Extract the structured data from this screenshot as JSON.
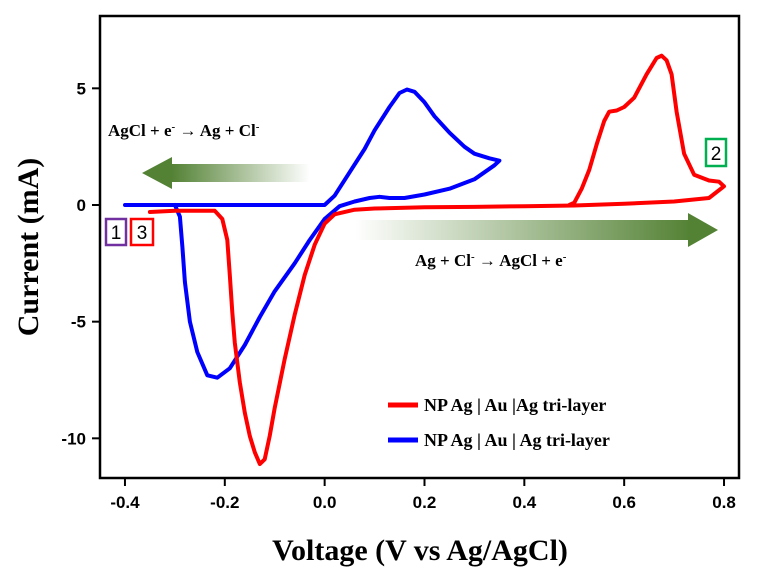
{
  "chart_data": {
    "type": "line",
    "xlabel": "Voltage (V vs Ag/AgCl)",
    "ylabel": "Current (mA)",
    "xlim": [
      -0.45,
      0.83
    ],
    "ylim": [
      -11.7,
      8.1
    ],
    "xticks": [
      -0.4,
      -0.2,
      0.0,
      0.2,
      0.4,
      0.6,
      0.8
    ],
    "xtick_labels": [
      "-0.4",
      "-0.2",
      "0.0",
      "0.2",
      "0.4",
      "0.6",
      "0.8"
    ],
    "yticks": [
      -10,
      -5,
      0,
      5
    ],
    "ytick_labels": [
      "-10",
      "-5",
      "0",
      "5"
    ],
    "grid": false,
    "legend_position": "bottom-right",
    "series": [
      {
        "name": "NP Ag | Au |Ag tri-layer",
        "color": "#ff0000",
        "points": [
          [
            -0.35,
            -0.3
          ],
          [
            -0.3,
            -0.25
          ],
          [
            -0.25,
            -0.25
          ],
          [
            -0.22,
            -0.25
          ],
          [
            -0.205,
            -0.6
          ],
          [
            -0.195,
            -1.5
          ],
          [
            -0.19,
            -3.0
          ],
          [
            -0.185,
            -4.6
          ],
          [
            -0.18,
            -5.9
          ],
          [
            -0.17,
            -7.6
          ],
          [
            -0.16,
            -8.9
          ],
          [
            -0.15,
            -9.9
          ],
          [
            -0.14,
            -10.6
          ],
          [
            -0.13,
            -11.1
          ],
          [
            -0.12,
            -10.9
          ],
          [
            -0.11,
            -9.9
          ],
          [
            -0.1,
            -8.7
          ],
          [
            -0.08,
            -6.6
          ],
          [
            -0.06,
            -4.7
          ],
          [
            -0.04,
            -3.0
          ],
          [
            -0.02,
            -1.7
          ],
          [
            0.0,
            -0.8
          ],
          [
            0.02,
            -0.4
          ],
          [
            0.06,
            -0.2
          ],
          [
            0.1,
            -0.15
          ],
          [
            0.2,
            -0.1
          ],
          [
            0.3,
            -0.08
          ],
          [
            0.4,
            -0.05
          ],
          [
            0.5,
            -0.02
          ],
          [
            0.6,
            0.05
          ],
          [
            0.7,
            0.15
          ],
          [
            0.77,
            0.3
          ],
          [
            0.8,
            0.8
          ],
          [
            0.79,
            1.0
          ],
          [
            0.77,
            1.05
          ],
          [
            0.74,
            1.3
          ],
          [
            0.72,
            2.2
          ],
          [
            0.705,
            4.0
          ],
          [
            0.695,
            5.6
          ],
          [
            0.685,
            6.2
          ],
          [
            0.675,
            6.4
          ],
          [
            0.665,
            6.3
          ],
          [
            0.645,
            5.6
          ],
          [
            0.62,
            4.6
          ],
          [
            0.6,
            4.2
          ],
          [
            0.585,
            4.05
          ],
          [
            0.57,
            4.0
          ],
          [
            0.56,
            3.6
          ],
          [
            0.545,
            2.6
          ],
          [
            0.53,
            1.5
          ],
          [
            0.515,
            0.7
          ],
          [
            0.5,
            0.1
          ],
          [
            0.49,
            0.0
          ]
        ]
      },
      {
        "name": "NP Ag | Au | Ag tri-layer",
        "color": "#0000ff",
        "points": [
          [
            -0.4,
            0.0
          ],
          [
            -0.3,
            0.0
          ],
          [
            -0.2,
            0.0
          ],
          [
            -0.1,
            0.0
          ],
          [
            0.0,
            0.0
          ],
          [
            0.02,
            0.4
          ],
          [
            0.05,
            1.4
          ],
          [
            0.08,
            2.4
          ],
          [
            0.1,
            3.2
          ],
          [
            0.13,
            4.2
          ],
          [
            0.15,
            4.8
          ],
          [
            0.165,
            4.95
          ],
          [
            0.18,
            4.85
          ],
          [
            0.2,
            4.4
          ],
          [
            0.22,
            3.8
          ],
          [
            0.25,
            3.1
          ],
          [
            0.28,
            2.5
          ],
          [
            0.3,
            2.2
          ],
          [
            0.33,
            2.0
          ],
          [
            0.35,
            1.9
          ],
          [
            0.34,
            1.7
          ],
          [
            0.32,
            1.4
          ],
          [
            0.3,
            1.1
          ],
          [
            0.25,
            0.7
          ],
          [
            0.2,
            0.45
          ],
          [
            0.16,
            0.3
          ],
          [
            0.13,
            0.3
          ],
          [
            0.11,
            0.35
          ],
          [
            0.09,
            0.3
          ],
          [
            0.06,
            0.15
          ],
          [
            0.03,
            -0.05
          ],
          [
            0.0,
            -0.6
          ],
          [
            -0.03,
            -1.5
          ],
          [
            -0.06,
            -2.5
          ],
          [
            -0.1,
            -3.7
          ],
          [
            -0.13,
            -4.8
          ],
          [
            -0.16,
            -6.0
          ],
          [
            -0.19,
            -7.0
          ],
          [
            -0.215,
            -7.4
          ],
          [
            -0.235,
            -7.3
          ],
          [
            -0.255,
            -6.3
          ],
          [
            -0.27,
            -5.0
          ],
          [
            -0.28,
            -3.3
          ],
          [
            -0.285,
            -1.8
          ],
          [
            -0.29,
            -0.5
          ],
          [
            -0.3,
            0.0
          ]
        ]
      }
    ],
    "annotations": {
      "reduction": {
        "before": "AgCl + e",
        "sup1": "-",
        "after": " → Ag + Cl",
        "sup2": "-"
      },
      "oxidation": {
        "before": "Ag + Cl",
        "sup1": "-",
        "after": " → AgCl + e",
        "sup2": "-"
      },
      "box_1": {
        "label": "1",
        "color": "#7030a0"
      },
      "box_3": {
        "label": "3",
        "color": "#ff0000"
      },
      "box_2": {
        "label": "2",
        "color": "#00b050"
      }
    },
    "arrow_color": "#548235"
  }
}
